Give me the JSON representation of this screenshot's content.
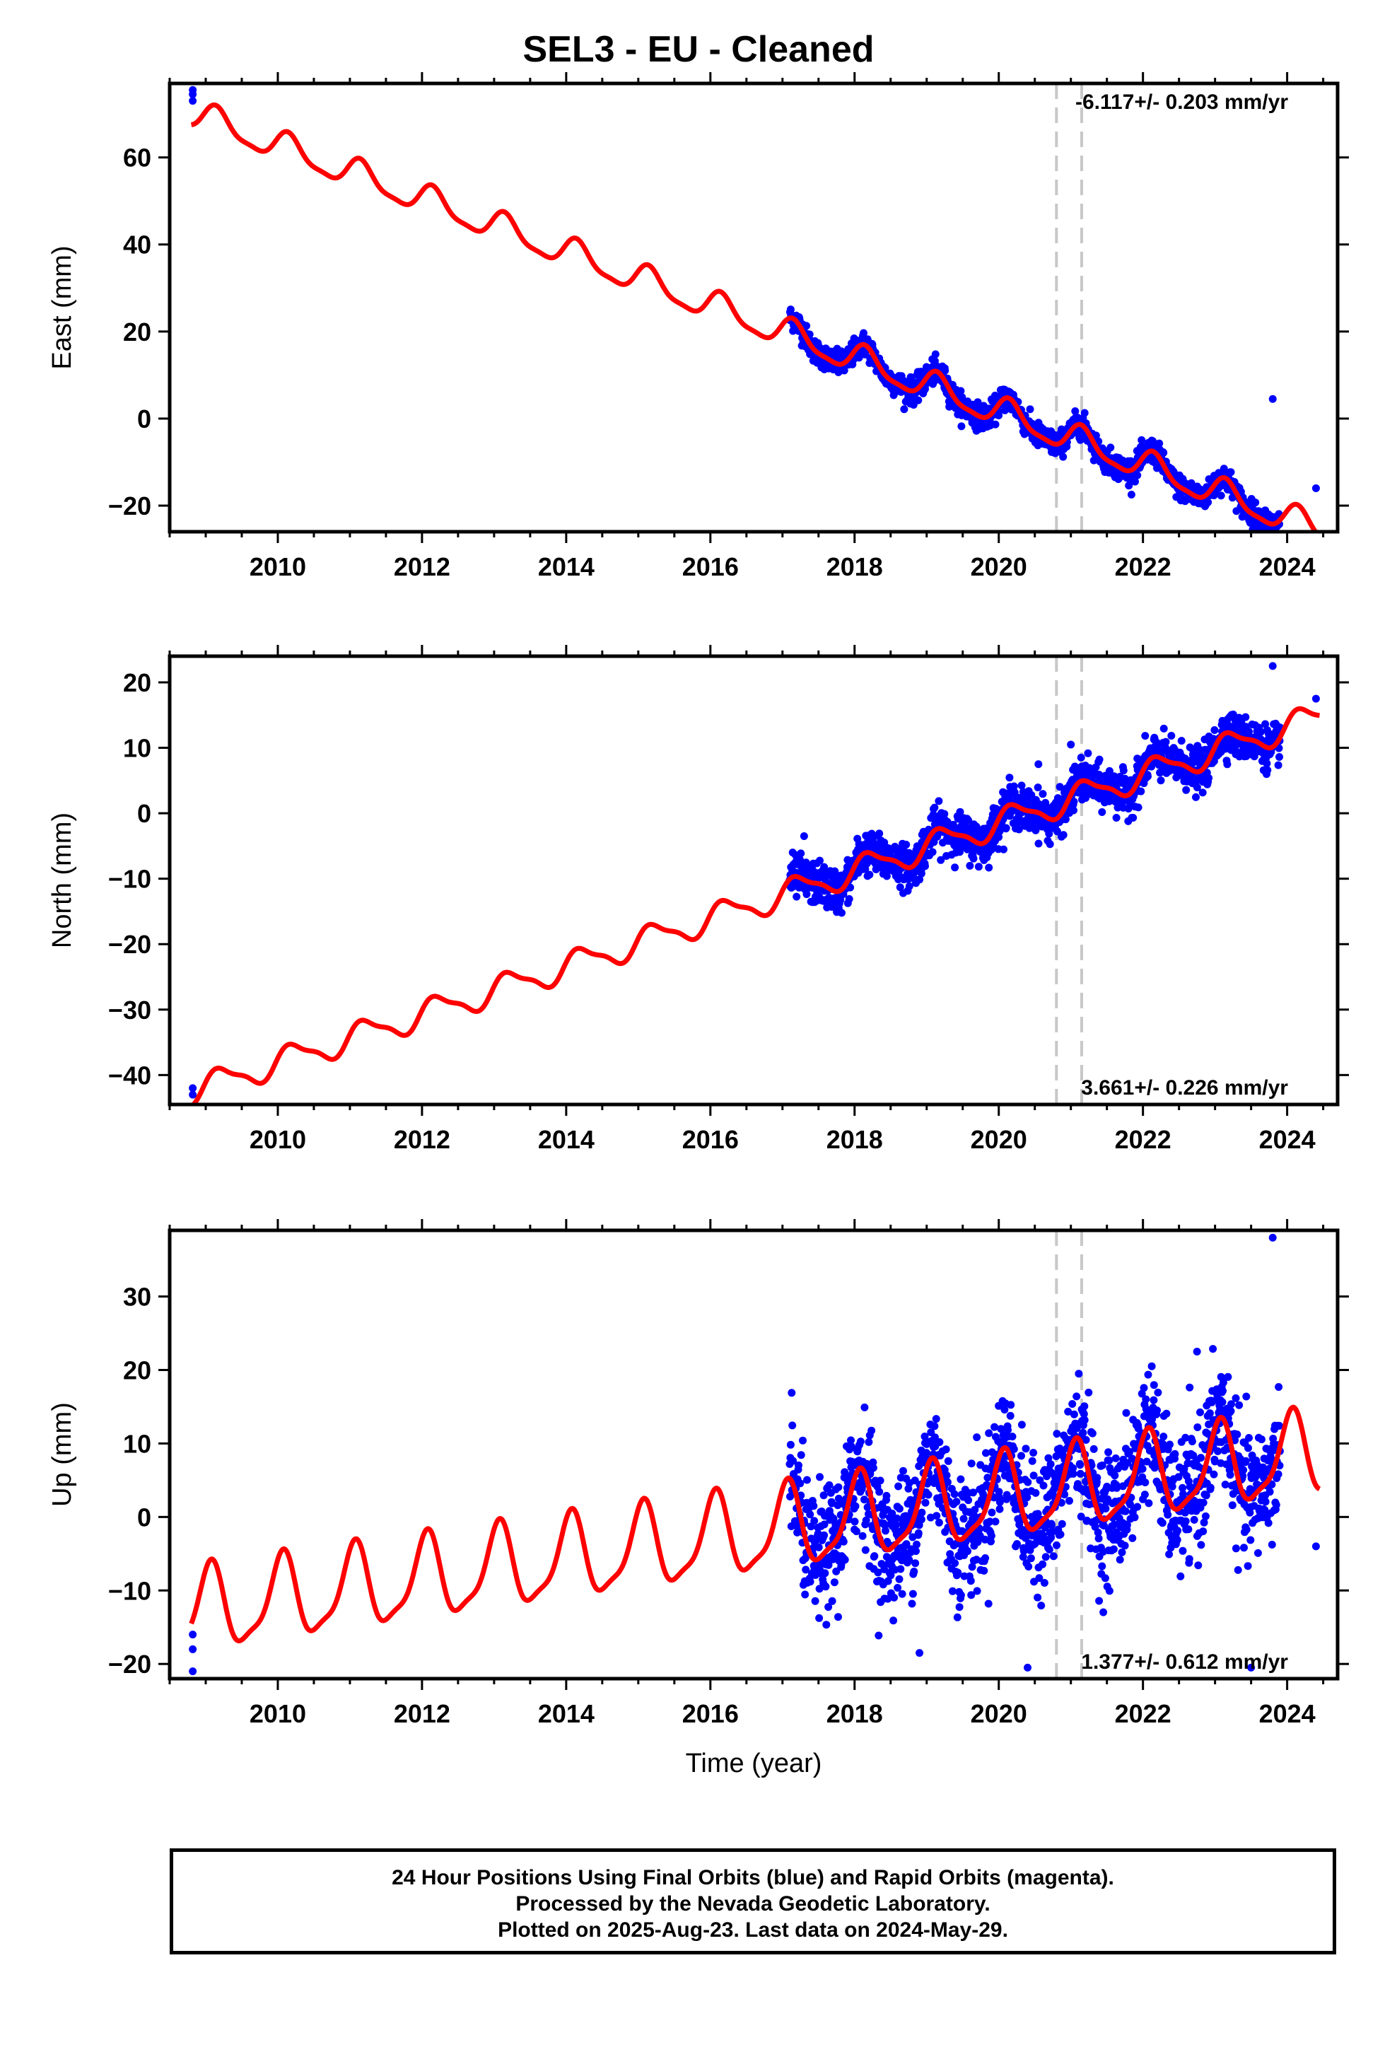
{
  "title": "SEL3  - EU - Cleaned",
  "colors": {
    "final_orbits": "#0000ff",
    "model": "#ff0000",
    "offsets": "#c8c8c8",
    "frame": "#000000"
  },
  "chart_data": [
    {
      "type": "scatter",
      "ylabel": "East (mm)",
      "xlabel": "",
      "xlim": [
        2008.5,
        2024.7
      ],
      "ylim": [
        -26,
        77
      ],
      "xticks": [
        2010,
        2012,
        2014,
        2016,
        2018,
        2020,
        2022,
        2024
      ],
      "yticks": [
        -20,
        0,
        20,
        40,
        60
      ],
      "rate_label": "-6.117+/- 0.203 mm/yr",
      "rate_position": "top-right",
      "offset_lines_x": [
        2020.8,
        2021.15
      ],
      "model": {
        "ref_year": 2008.8,
        "ref_value": 70,
        "rate": -6.117,
        "annual_amp": 3.2,
        "annual_phase": 0.6,
        "semiannual_amp": 0.9,
        "semiannual_phase": 0.0
      },
      "data_span": [
        2017.1,
        2023.9
      ],
      "noise_mm": 1.4,
      "isolated_points": [
        [
          2008.82,
          75.5
        ],
        [
          2008.82,
          74.5
        ],
        [
          2008.82,
          73.0
        ],
        [
          2023.8,
          4.5
        ],
        [
          2024.4,
          -16
        ]
      ],
      "series": [
        {
          "role": "final-orbits"
        },
        {
          "role": "model-fit"
        }
      ]
    },
    {
      "type": "scatter",
      "ylabel": "North (mm)",
      "xlabel": "",
      "xlim": [
        2008.5,
        2024.7
      ],
      "ylim": [
        -44.5,
        24
      ],
      "xticks": [
        2010,
        2012,
        2014,
        2016,
        2018,
        2020,
        2022,
        2024
      ],
      "yticks": [
        -40,
        -30,
        -20,
        -10,
        0,
        10,
        20
      ],
      "rate_label": "3.661+/- 0.226 mm/yr",
      "rate_position": "bottom-right",
      "offset_lines_x": [
        2020.8,
        2021.15
      ],
      "model": {
        "ref_year": 2008.8,
        "ref_value": -42.5,
        "rate": 3.661,
        "annual_amp": 2.0,
        "annual_phase": 0.2,
        "semiannual_amp": 0.6,
        "semiannual_phase": 0.5
      },
      "data_span": [
        2017.1,
        2023.9
      ],
      "noise_mm": 1.6,
      "isolated_points": [
        [
          2008.82,
          -42
        ],
        [
          2008.82,
          -43
        ],
        [
          2023.8,
          22.5
        ],
        [
          2024.4,
          17.5
        ],
        [
          2020.55,
          7.5
        ],
        [
          2021.0,
          10.5
        ],
        [
          2017.3,
          -3.5
        ]
      ],
      "series": [
        {
          "role": "final-orbits"
        },
        {
          "role": "model-fit"
        }
      ]
    },
    {
      "type": "scatter",
      "ylabel": "Up (mm)",
      "xlabel": "Time (year)",
      "xlim": [
        2008.5,
        2024.7
      ],
      "ylim": [
        -22,
        39
      ],
      "xticks": [
        2010,
        2012,
        2014,
        2016,
        2018,
        2020,
        2022,
        2024
      ],
      "yticks": [
        -20,
        -10,
        0,
        10,
        20,
        30
      ],
      "rate_label": "1.377+/- 0.612 mm/yr",
      "rate_position": "bottom-right",
      "offset_lines_x": [
        2020.8,
        2021.15
      ],
      "model": {
        "ref_year": 2008.8,
        "ref_value": -13,
        "rate": 1.377,
        "annual_amp": 5.5,
        "annual_phase": 1.2,
        "semiannual_amp": 1.5,
        "semiannual_phase": 0.3
      },
      "data_span": [
        2017.1,
        2023.9
      ],
      "noise_mm": 4.2,
      "isolated_points": [
        [
          2008.82,
          -16
        ],
        [
          2008.82,
          -18
        ],
        [
          2008.82,
          -21
        ],
        [
          2023.8,
          38
        ],
        [
          2024.4,
          -4
        ],
        [
          2020.4,
          -20.5
        ],
        [
          2023.5,
          -20.5
        ],
        [
          2022.75,
          22.5
        ],
        [
          2018.9,
          -18.5
        ]
      ],
      "series": [
        {
          "role": "final-orbits"
        },
        {
          "role": "model-fit"
        }
      ]
    }
  ],
  "footer": {
    "line1": "24 Hour Positions Using Final Orbits (blue) and Rapid Orbits (magenta).",
    "line2": "Processed by the Nevada Geodetic Laboratory.",
    "line3": "Plotted on 2025-Aug-23. Last data on 2024-May-29."
  }
}
